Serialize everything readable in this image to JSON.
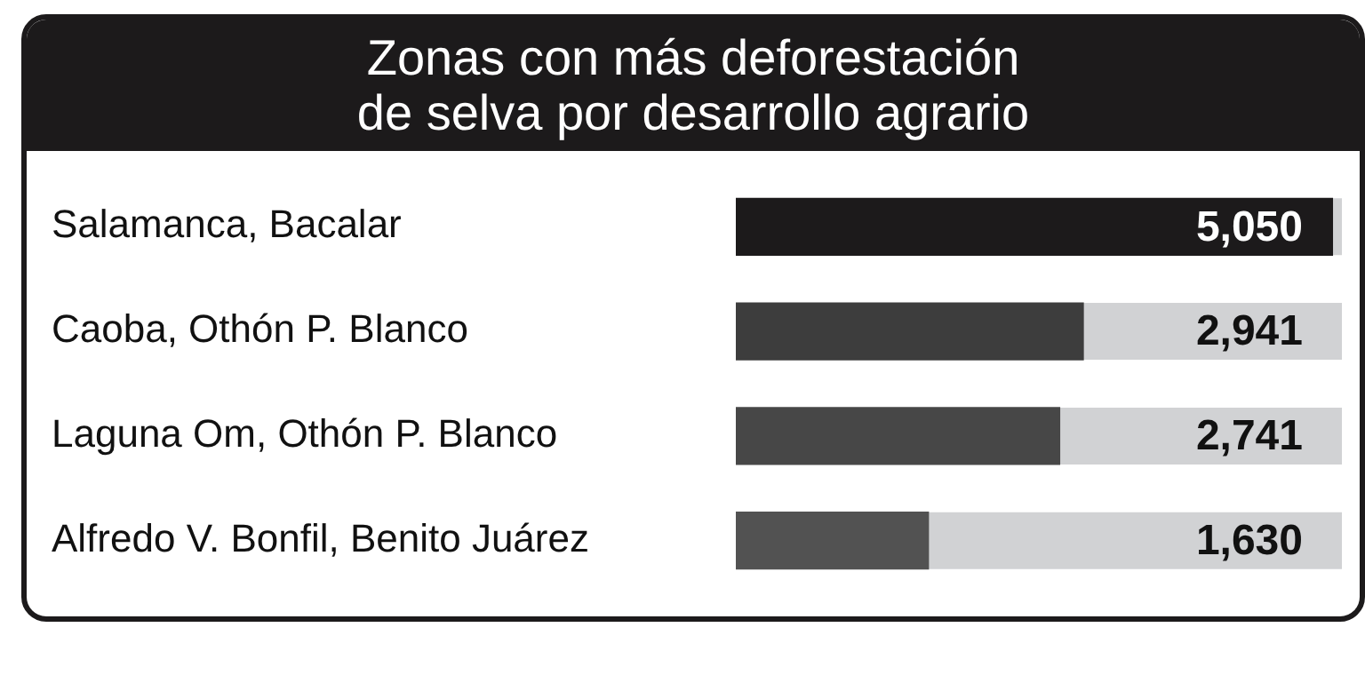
{
  "chart_data": {
    "type": "bar",
    "orientation": "horizontal",
    "title": "Zonas con más deforestación\nde selva por desarrollo agrario",
    "categories": [
      "Salamanca, Bacalar",
      "Caoba, Othón P. Blanco",
      "Laguna Om, Othón P. Blanco",
      "Alfredo V. Bonfil, Benito Juárez"
    ],
    "values": [
      5050,
      2941,
      2741,
      1630
    ],
    "colors": [
      "#1c1a1b",
      "#3d3d3d",
      "#474747",
      "#525252"
    ],
    "value_labels": [
      "5,050",
      "2,941",
      "2,741",
      "1,630"
    ],
    "xlim": [
      0,
      5130
    ],
    "tick_labels": "y"
  }
}
